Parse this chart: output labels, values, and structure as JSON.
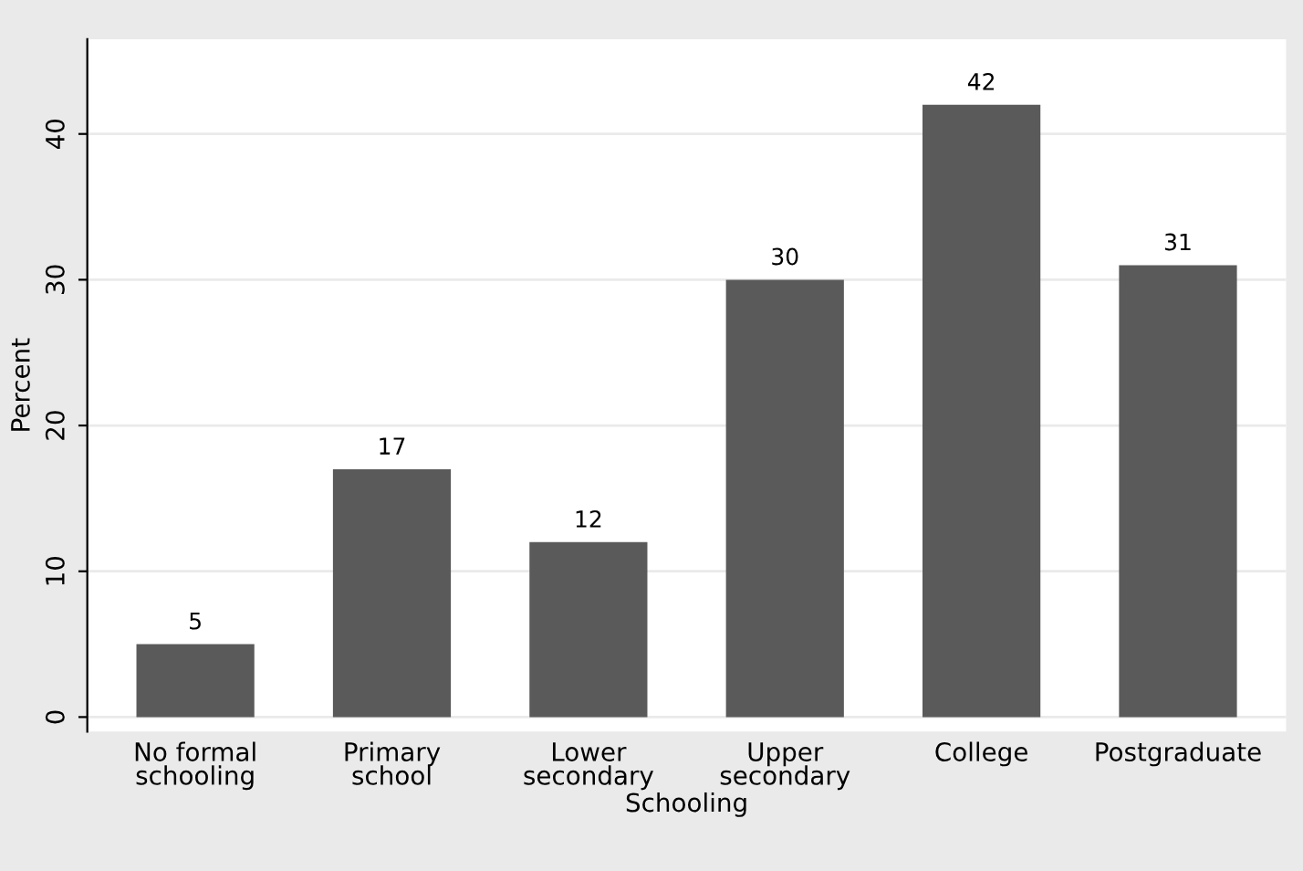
{
  "chart_data": {
    "type": "bar",
    "xlabel": "Schooling",
    "ylabel": "Percent",
    "categories": [
      "No formal\nschooling",
      "Primary\nschool",
      "Lower\nsecondary",
      "Upper\nsecondary",
      "College",
      "Postgraduate"
    ],
    "values": [
      5,
      17,
      12,
      30,
      42,
      31
    ],
    "color": "#5a5a5a",
    "ylim": [
      -1,
      46.5
    ],
    "yticks": [
      0,
      10,
      20,
      30,
      40
    ],
    "grid": "y",
    "data_labels": true
  }
}
